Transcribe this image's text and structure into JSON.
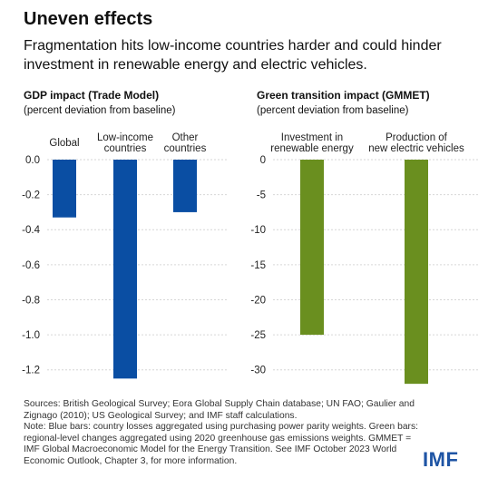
{
  "header": {
    "title": "Uneven effects",
    "subtitle": "Fragmentation hits low-income countries harder and could hinder investment in renewable energy and electric vehicles."
  },
  "colors": {
    "blue": "#0a4ea3",
    "green": "#6a8f1f",
    "brand": "#1f55a5"
  },
  "chart_data": [
    {
      "type": "bar",
      "title": "GDP impact (Trade Model)",
      "subtitle": "(percent deviation from baseline)",
      "categories": [
        [
          "Global"
        ],
        [
          "Low-income",
          "countries"
        ],
        [
          "Other",
          "countries"
        ]
      ],
      "values": [
        -0.33,
        -1.25,
        -0.3
      ],
      "ylim": [
        -1.3,
        0
      ],
      "ticks": [
        0,
        -0.2,
        -0.4,
        -0.6,
        -0.8,
        -1.0,
        -1.2
      ],
      "tick_labels": [
        "0.0",
        "-0.2",
        "-0.4",
        "-0.6",
        "-0.8",
        "-1.0",
        "-1.2"
      ],
      "color": "#0a4ea3"
    },
    {
      "type": "bar",
      "title": "Green transition impact (GMMET)",
      "subtitle": "(percent deviation from baseline)",
      "categories": [
        [
          "Investment in",
          "renewable energy"
        ],
        [
          "Production of",
          "new electric vehicles"
        ]
      ],
      "values": [
        -25,
        -32
      ],
      "ylim": [
        -32.5,
        0
      ],
      "ticks": [
        0,
        -5,
        -10,
        -15,
        -20,
        -25,
        -30
      ],
      "tick_labels": [
        "0",
        "-5",
        "-10",
        "-15",
        "-20",
        "-25",
        "-30"
      ],
      "color": "#6a8f1f"
    }
  ],
  "notes": {
    "sources": "Sources: British Geological Survey; Eora Global Supply Chain database; UN FAO; Gaulier and Zignago (2010); US Geological Survey; and IMF staff calculations.",
    "note": "Note: Blue bars: country losses aggregated using purchasing power parity weights. Green bars: regional-level changes aggregated using 2020 greenhouse gas emissions weights. GMMET = IMF Global Macroeconomic Model for the Energy Transition. See IMF October 2023 World Economic Outlook, Chapter 3, for more information."
  },
  "logo": "IMF"
}
